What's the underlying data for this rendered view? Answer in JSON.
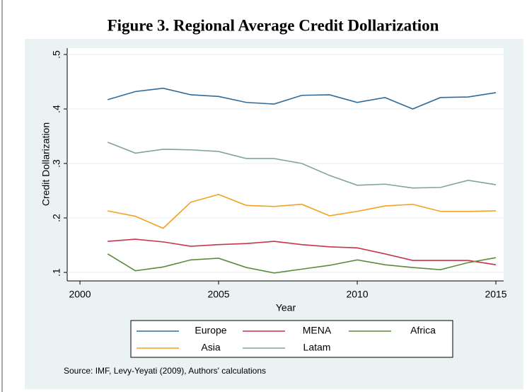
{
  "chart_data": {
    "type": "line",
    "title": "Figure 3. Regional Average Credit Dollarization",
    "x_label": "Year",
    "y_label": "Credit Dollarization",
    "source": "Source: IMF, Levy-Yeyati (2009), Authors' calculations",
    "x": [
      2001,
      2002,
      2003,
      2004,
      2005,
      2006,
      2007,
      2008,
      2009,
      2010,
      2011,
      2012,
      2013,
      2014,
      2015
    ],
    "series": [
      {
        "name": "Europe",
        "color": "#2f6a9a",
        "values": [
          0.417,
          0.432,
          0.438,
          0.426,
          0.423,
          0.412,
          0.409,
          0.425,
          0.426,
          0.412,
          0.421,
          0.4,
          0.421,
          0.422,
          0.43
        ]
      },
      {
        "name": "MENA",
        "color": "#c8344a",
        "values": [
          0.157,
          0.161,
          0.156,
          0.148,
          0.151,
          0.153,
          0.157,
          0.151,
          0.147,
          0.145,
          0.134,
          0.122,
          0.122,
          0.122,
          0.114
        ]
      },
      {
        "name": "Africa",
        "color": "#5b8a3c",
        "values": [
          0.134,
          0.103,
          0.11,
          0.123,
          0.126,
          0.109,
          0.099,
          0.106,
          0.113,
          0.123,
          0.114,
          0.109,
          0.105,
          0.118,
          0.127
        ]
      },
      {
        "name": "Asia",
        "color": "#f5a020",
        "values": [
          0.213,
          0.203,
          0.181,
          0.229,
          0.243,
          0.223,
          0.221,
          0.225,
          0.204,
          0.212,
          0.222,
          0.225,
          0.212,
          0.212,
          0.213
        ]
      },
      {
        "name": "Latam",
        "color": "#7fa59a",
        "values": [
          0.339,
          0.319,
          0.326,
          0.325,
          0.322,
          0.309,
          0.309,
          0.3,
          0.278,
          0.26,
          0.262,
          0.255,
          0.256,
          0.269,
          0.261
        ]
      }
    ],
    "xlim": [
      1999.54,
      2015.28
    ],
    "xticks": [
      2000,
      2005,
      2010,
      2015
    ],
    "ylim": [
      0.0844,
      0.5117
    ],
    "yticks": [
      {
        "value": 0.1,
        "label": ".1"
      },
      {
        "value": 0.2,
        "label": ".2"
      },
      {
        "value": 0.3,
        "label": ".3"
      },
      {
        "value": 0.4,
        "label": ".4"
      },
      {
        "value": 0.5,
        "label": ".5"
      }
    ],
    "grid": true
  }
}
